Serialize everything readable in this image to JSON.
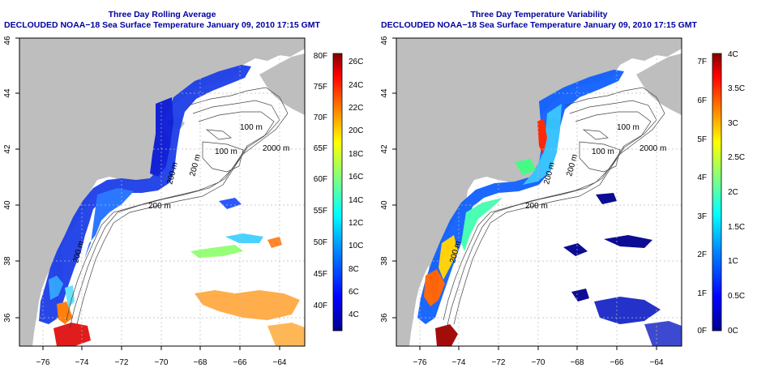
{
  "left_panel": {
    "title": "Three Day Rolling Average",
    "subtitle": "DECLOUDED NOAA−18 Sea Surface Temperature January 09, 2010 17:15 GMT",
    "x_ticks": [
      "−76",
      "−74",
      "−72",
      "−70",
      "−68",
      "−66",
      "−64"
    ],
    "y_ticks": [
      "36",
      "38",
      "40",
      "42",
      "44",
      "46"
    ],
    "contour_labels": [
      "100 m",
      "100 m",
      "2000 m",
      "200 m",
      "200 m",
      "200 m",
      "200 m"
    ],
    "colorbar": {
      "f_labels": [
        "80F",
        "75F",
        "70F",
        "65F",
        "60F",
        "55F",
        "50F",
        "45F",
        "40F"
      ],
      "c_labels": [
        "26C",
        "24C",
        "22C",
        "20C",
        "18C",
        "16C",
        "14C",
        "12C",
        "10C",
        "8C",
        "6C",
        "4C"
      ],
      "colors": [
        "#00008f",
        "#0000ff",
        "#0080ff",
        "#00ffff",
        "#80ff80",
        "#ffff00",
        "#ff8000",
        "#ff0000",
        "#800000"
      ]
    }
  },
  "right_panel": {
    "title": "Three Day Temperature Variability",
    "subtitle": "DECLOUDED NOAA−18 Sea Surface Temperature January 09, 2010 17:15 GMT",
    "x_ticks": [
      "−76",
      "−74",
      "−72",
      "−70",
      "−68",
      "−66",
      "−64"
    ],
    "y_ticks": [
      "36",
      "38",
      "40",
      "42",
      "44",
      "46"
    ],
    "contour_labels": [
      "100 m",
      "100 m",
      "2000 m",
      "200 m",
      "200 m",
      "200 m",
      "200 m"
    ],
    "colorbar": {
      "f_labels": [
        "7F",
        "6F",
        "5F",
        "4F",
        "3F",
        "2F",
        "1F",
        "0F"
      ],
      "c_labels": [
        "4C",
        "3.5C",
        "3C",
        "2.5C",
        "2C",
        "1.5C",
        "1C",
        "0.5C",
        "0C"
      ],
      "colors": [
        "#00008f",
        "#0000ff",
        "#0080ff",
        "#00ffff",
        "#80ff80",
        "#ffff00",
        "#ff8000",
        "#ff0000",
        "#800000"
      ]
    }
  },
  "colors": {
    "land": "#bebebe",
    "title": "#0000a0",
    "grid": "#bbbbbb",
    "contour": "#444444"
  }
}
